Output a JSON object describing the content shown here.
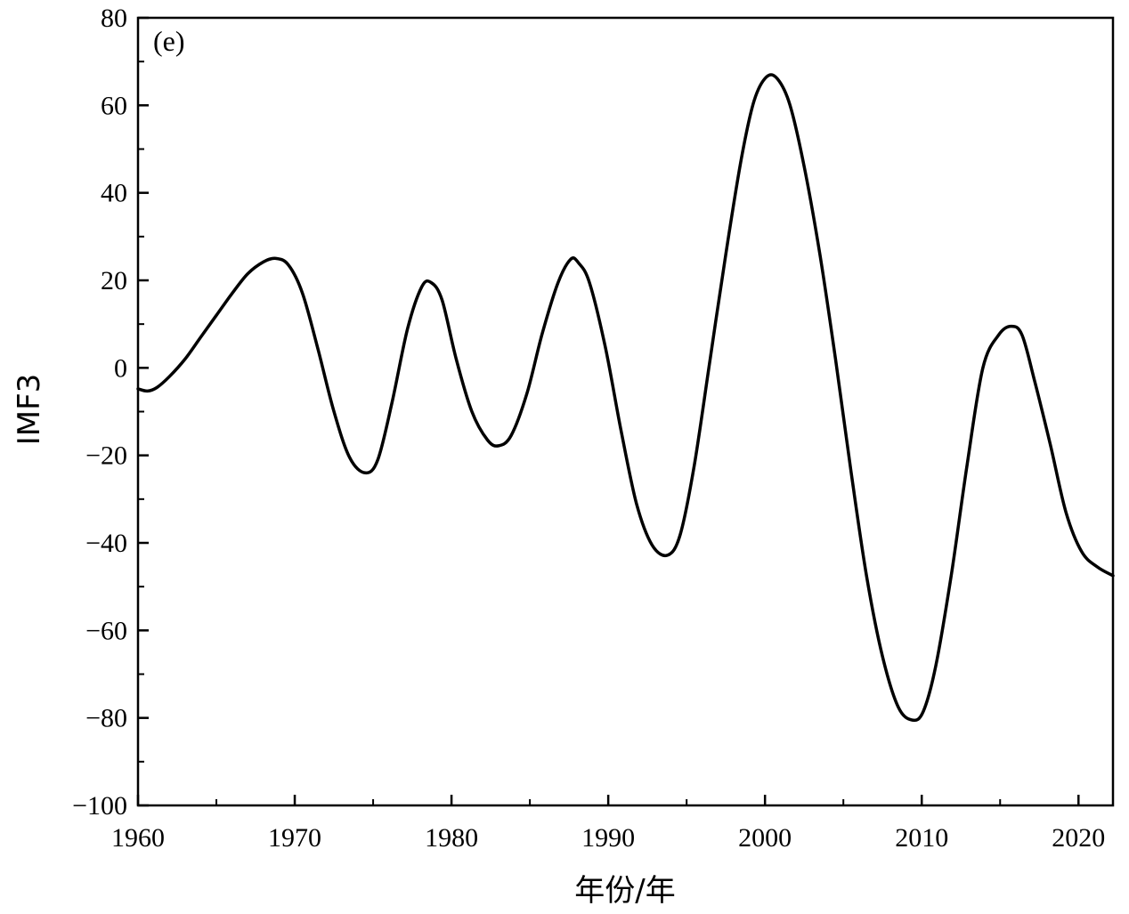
{
  "chart_data": {
    "type": "line",
    "panel_label": "(e)",
    "xlabel": "年份/年",
    "ylabel": "IMF3",
    "xlim": [
      1960,
      2022.2
    ],
    "ylim": [
      -100,
      80
    ],
    "x_ticks": [
      1960,
      1970,
      1980,
      1990,
      2000,
      2010,
      2020
    ],
    "y_ticks": [
      -100,
      -80,
      -60,
      -40,
      -20,
      0,
      20,
      40,
      60,
      80
    ],
    "x_tick_labels": [
      "1960",
      "1970",
      "1980",
      "1990",
      "2000",
      "2010",
      "2020"
    ],
    "y_tick_labels": [
      "−100",
      "−80",
      "−60",
      "−40",
      "−20",
      "0",
      "20",
      "40",
      "60",
      "80"
    ],
    "line_color": "#000000",
    "series": [
      {
        "x": [
          1960,
          1960.6,
          1961.2,
          1962,
          1963,
          1964,
          1965,
          1966,
          1967,
          1968,
          1968.8,
          1969.6,
          1970.5,
          1971.5,
          1972.5,
          1973.5,
          1974.5,
          1975.3,
          1976.2,
          1977.2,
          1978.1,
          1978.7,
          1979.4,
          1980.3,
          1981.3,
          1982.3,
          1983,
          1983.8,
          1984.8,
          1985.8,
          1986.8,
          1987.6,
          1988.1,
          1988.8,
          1989.8,
          1990.8,
          1991.8,
          1992.8,
          1993.8,
          1994.6,
          1995.5,
          1996.5,
          1997.5,
          1998.5,
          1999.3,
          2000.1,
          2000.8,
          2001.6,
          2002.5,
          2003.5,
          2004.5,
          2005.5,
          2006.5,
          2007.5,
          2008.5,
          2009.4,
          2010.1,
          2010.9,
          2011.9,
          2012.9,
          2013.9,
          2014.9,
          2015.7,
          2016.4,
          2017.2,
          2018.2,
          2019.2,
          2020.2,
          2021.2,
          2022.2
        ],
        "y": [
          -4.8,
          -5.3,
          -4.5,
          -2,
          2,
          7,
          12,
          17,
          21.5,
          24.2,
          25,
          23.5,
          17,
          4,
          -10,
          -20.5,
          -24,
          -21,
          -8,
          9,
          18.5,
          19.5,
          15.5,
          2,
          -10,
          -16.5,
          -17.8,
          -15.5,
          -6,
          8,
          19.5,
          24.8,
          24,
          19.5,
          5,
          -14,
          -31,
          -40.5,
          -42.8,
          -38,
          -22,
          2,
          26,
          48,
          61,
          66.5,
          66,
          60,
          46,
          26,
          2,
          -24,
          -48,
          -66,
          -77.5,
          -80.5,
          -78.5,
          -68,
          -47,
          -22,
          0,
          7.5,
          9.5,
          7.5,
          -3,
          -17.5,
          -33,
          -42,
          -45.5,
          -47.5
        ]
      }
    ]
  }
}
